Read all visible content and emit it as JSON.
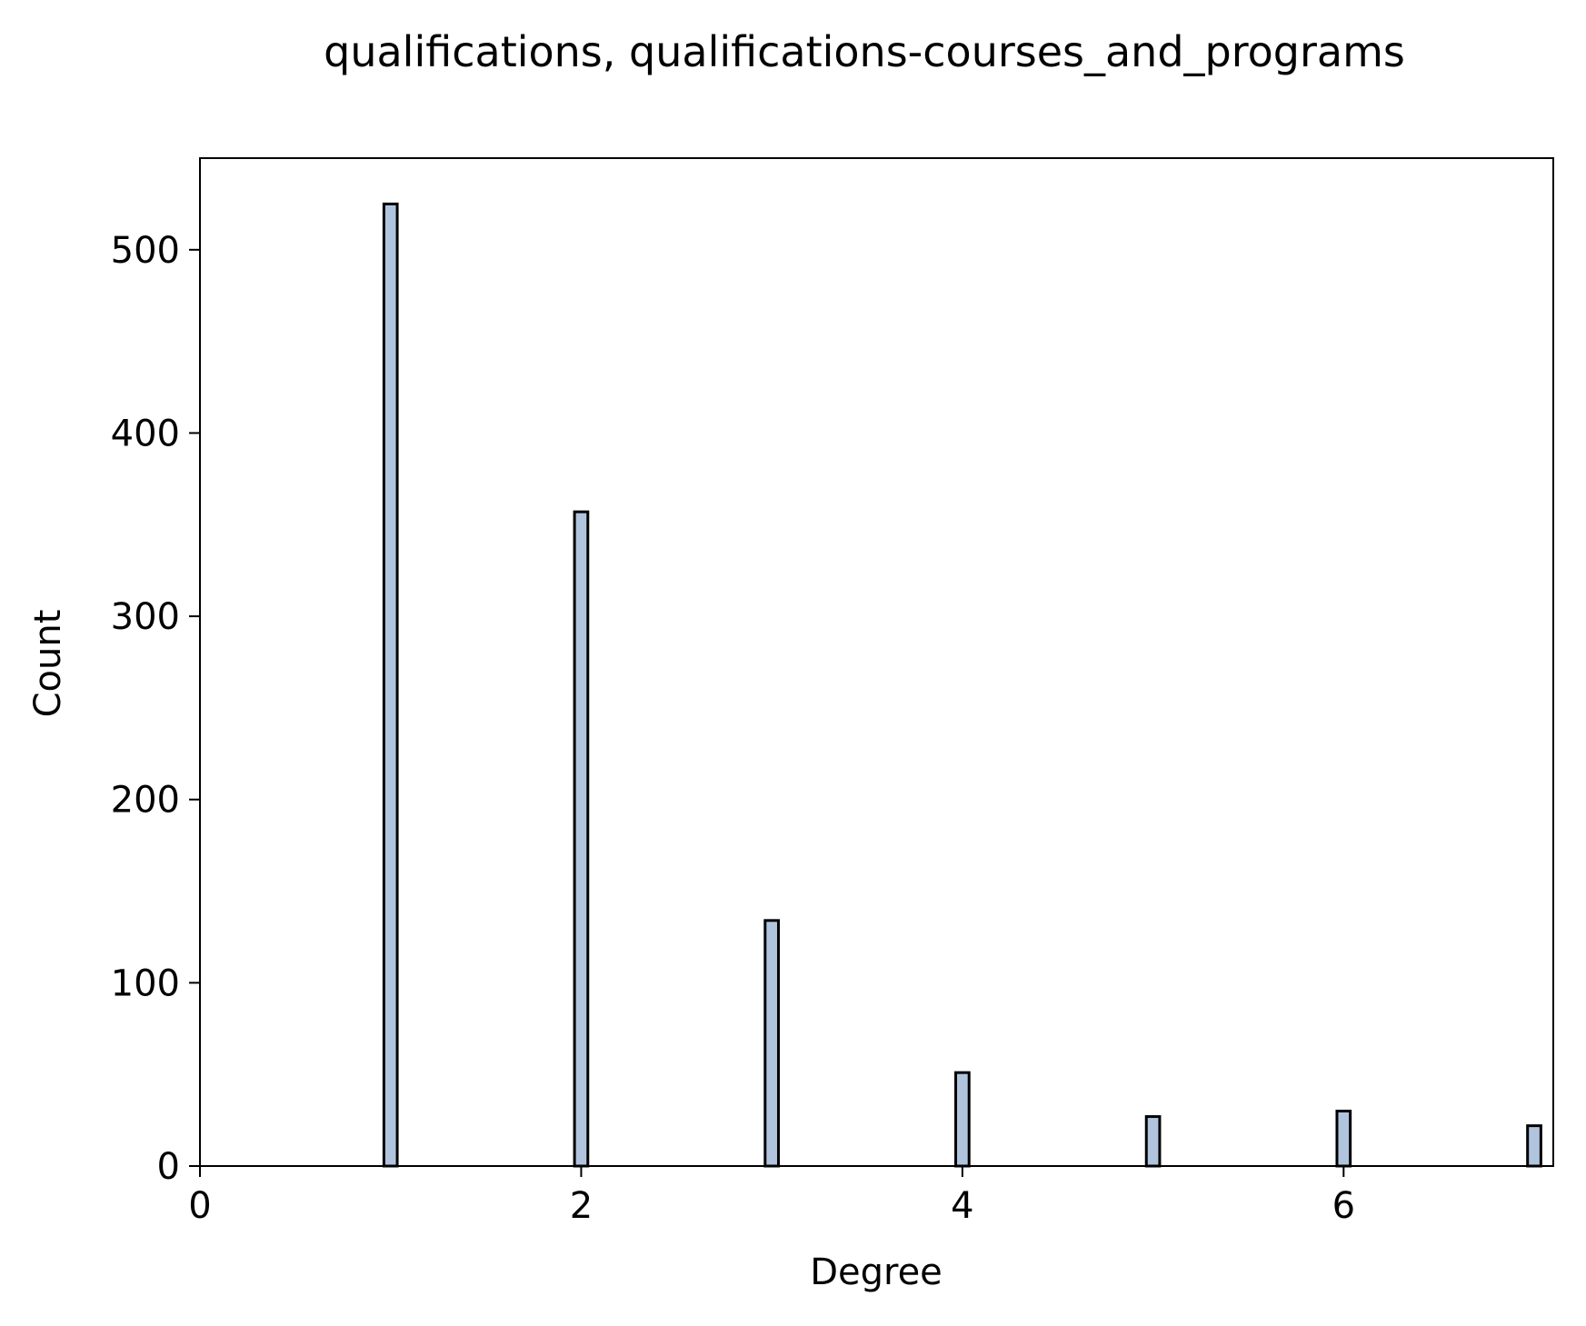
{
  "chart_data": {
    "type": "bar",
    "title": "qualifications, qualifications-courses_and_programs",
    "xlabel": "Degree",
    "ylabel": "Count",
    "x": [
      1,
      2,
      3,
      4,
      5,
      6,
      7
    ],
    "values": [
      525,
      357,
      134,
      51,
      27,
      30,
      22
    ],
    "xlim": [
      0,
      7.1
    ],
    "ylim": [
      0,
      550
    ],
    "xticks": [
      0,
      2,
      4,
      6
    ],
    "yticks": [
      0,
      100,
      200,
      300,
      400,
      500
    ],
    "grid": false,
    "colors": {
      "bar_fill": "#b0c4de",
      "bar_edge": "#000000"
    }
  }
}
